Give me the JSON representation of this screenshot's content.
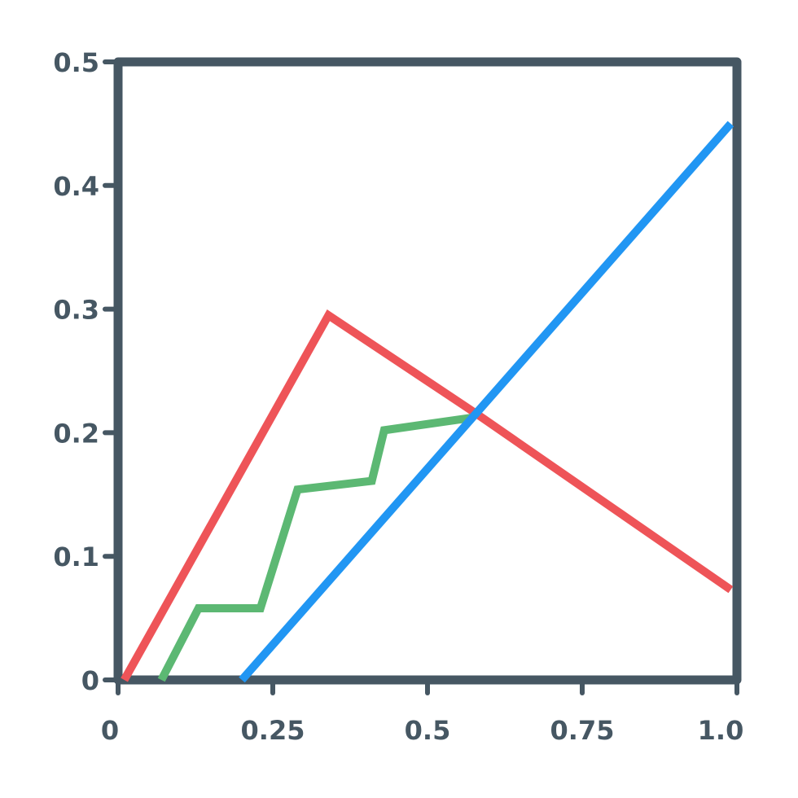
{
  "chart_data": {
    "type": "line",
    "title": "",
    "xlabel": "",
    "ylabel": "",
    "xlim": [
      0,
      1.0
    ],
    "ylim": [
      0,
      0.5
    ],
    "x_ticks": [
      0,
      0.25,
      0.5,
      0.75,
      1.0
    ],
    "x_tick_labels": [
      "0",
      "0.25",
      "0.5",
      "0.75",
      "1.0"
    ],
    "y_ticks": [
      0,
      0.1,
      0.2,
      0.3,
      0.4,
      0.5
    ],
    "y_tick_labels": [
      "0",
      "0.1",
      "0.2",
      "0.3",
      "0.4",
      "0.5"
    ],
    "grid": false,
    "legend": "none",
    "series": [
      {
        "color": "#ee5458",
        "points": [
          [
            0.01,
            0.0
          ],
          [
            0.34,
            0.295
          ],
          [
            0.58,
            0.215
          ],
          [
            0.99,
            0.073
          ]
        ]
      },
      {
        "color": "#5cb873",
        "points": [
          [
            0.07,
            0.0
          ],
          [
            0.13,
            0.058
          ],
          [
            0.23,
            0.058
          ],
          [
            0.29,
            0.154
          ],
          [
            0.41,
            0.161
          ],
          [
            0.43,
            0.202
          ],
          [
            0.57,
            0.212
          ]
        ]
      },
      {
        "color": "#2196f3",
        "points": [
          [
            0.2,
            0.0
          ],
          [
            0.99,
            0.45
          ]
        ]
      }
    ],
    "colors": {
      "axis": "#465763",
      "background": "#ffffff"
    }
  }
}
